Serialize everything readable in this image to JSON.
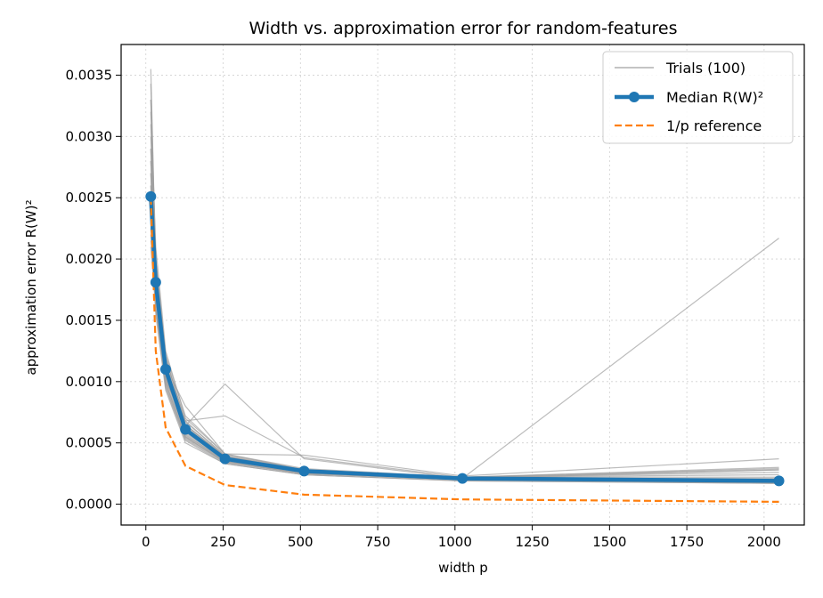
{
  "chart_data": {
    "type": "line",
    "title": "Width vs. approximation error for random-features",
    "xlabel": "width p",
    "ylabel": "approximation error R(W)²",
    "xlim": [
      -80,
      2130
    ],
    "ylim": [
      -0.00017,
      0.00375
    ],
    "x_ticks": [
      0,
      250,
      500,
      750,
      1000,
      1250,
      1500,
      1750,
      2000
    ],
    "x_tick_labels": [
      "0",
      "250",
      "500",
      "750",
      "1000",
      "1250",
      "1500",
      "1750",
      "2000"
    ],
    "y_ticks": [
      0.0,
      0.0005,
      0.001,
      0.0015,
      0.002,
      0.0025,
      0.003,
      0.0035
    ],
    "y_tick_labels": [
      "0.0000",
      "0.0005",
      "0.0010",
      "0.0015",
      "0.0020",
      "0.0025",
      "0.0030",
      "0.0035"
    ],
    "grid": true,
    "legend_position": "top-right",
    "x": [
      16,
      32,
      64,
      128,
      256,
      512,
      1024,
      2048
    ],
    "series": [
      {
        "name": "Median R(W)²",
        "kind": "median",
        "color": "#1f77b4",
        "values": [
          0.00251,
          0.00181,
          0.0011,
          0.00061,
          0.00037,
          0.00027,
          0.00021,
          0.00019
        ]
      },
      {
        "name": "1/p reference",
        "kind": "reference",
        "color": "#ff7f0e",
        "values": [
          0.0025,
          0.00125,
          0.000625,
          0.0003125,
          0.00015625,
          7.8e-05,
          3.9e-05,
          1.95e-05
        ]
      }
    ],
    "trials": {
      "name": "Trials (100)",
      "color": "#a0a0a0",
      "lines": [
        [
          0.00355,
          0.0019,
          0.00115,
          0.00065,
          0.00038,
          0.00027,
          0.00021,
          0.00021
        ],
        [
          0.00343,
          0.00195,
          0.00118,
          0.00068,
          0.00039,
          0.00028,
          0.00022,
          0.00022
        ],
        [
          0.0033,
          0.00185,
          0.0011,
          0.0006,
          0.00037,
          0.00026,
          0.00021,
          0.0002
        ],
        [
          0.0031,
          0.0018,
          0.00108,
          0.00058,
          0.00036,
          0.00026,
          0.0002,
          0.00019
        ],
        [
          0.0029,
          0.00175,
          0.00105,
          0.00057,
          0.00035,
          0.00025,
          0.0002,
          0.00018
        ],
        [
          0.0028,
          0.0017,
          0.001,
          0.00055,
          0.00035,
          0.00025,
          0.0002,
          0.00018
        ],
        [
          0.0027,
          0.00165,
          0.00098,
          0.00055,
          0.00034,
          0.00025,
          0.0002,
          0.00017
        ],
        [
          0.0026,
          0.0016,
          0.00095,
          0.00052,
          0.00033,
          0.00024,
          0.00019,
          0.00017
        ],
        [
          0.00255,
          0.00185,
          0.00112,
          0.00062,
          0.00038,
          0.00027,
          0.00021,
          0.0002
        ],
        [
          0.0025,
          0.0019,
          0.0012,
          0.00065,
          0.00039,
          0.00027,
          0.00021,
          0.00019
        ],
        [
          0.0024,
          0.0017,
          0.00103,
          0.00056,
          0.00036,
          0.00026,
          0.00021,
          0.00019
        ],
        [
          0.0023,
          0.0016,
          0.00096,
          0.00053,
          0.00034,
          0.00025,
          0.0002,
          0.00018
        ],
        [
          0.00225,
          0.00155,
          0.00093,
          0.0005,
          0.00033,
          0.00024,
          0.00019,
          0.00017
        ],
        [
          0.0022,
          0.00175,
          0.0011,
          0.00059,
          0.00037,
          0.00026,
          0.00021,
          0.00019
        ],
        [
          0.00215,
          0.0018,
          0.00115,
          0.00063,
          0.00038,
          0.00027,
          0.00021,
          0.0002
        ],
        [
          0.0021,
          0.0016,
          0.00099,
          0.00054,
          0.00035,
          0.00025,
          0.0002,
          0.00018
        ],
        [
          0.0032,
          0.0021,
          0.00125,
          0.0007,
          0.00041,
          0.00029,
          0.00022,
          0.00029
        ],
        [
          0.003,
          0.002,
          0.0012,
          0.00067,
          0.0004,
          0.00028,
          0.00022,
          0.00028
        ],
        [
          0.0028,
          0.0019,
          0.00113,
          0.00064,
          0.00039,
          0.00028,
          0.00022,
          0.0003
        ],
        [
          0.0027,
          0.00175,
          0.00105,
          0.0006,
          0.00038,
          0.00027,
          0.00021,
          0.00028
        ],
        [
          0.0029,
          0.00182,
          0.00112,
          0.0008,
          0.00041,
          0.0004,
          0.00023,
          0.00037
        ],
        [
          0.0026,
          0.0017,
          0.00102,
          0.00064,
          0.00098,
          0.00037,
          0.00021,
          0.00217
        ],
        [
          0.0025,
          0.0017,
          0.001,
          0.00068,
          0.00072,
          0.00038,
          0.00022,
          0.00026
        ],
        [
          0.0033,
          0.002,
          0.00122,
          0.00072,
          0.00041,
          0.00028,
          0.00022,
          0.00024
        ]
      ]
    },
    "legend": [
      {
        "label": "Trials (100)",
        "kind": "trials"
      },
      {
        "label": "Median R(W)²",
        "kind": "median"
      },
      {
        "label": "1/p reference",
        "kind": "reference"
      }
    ]
  }
}
